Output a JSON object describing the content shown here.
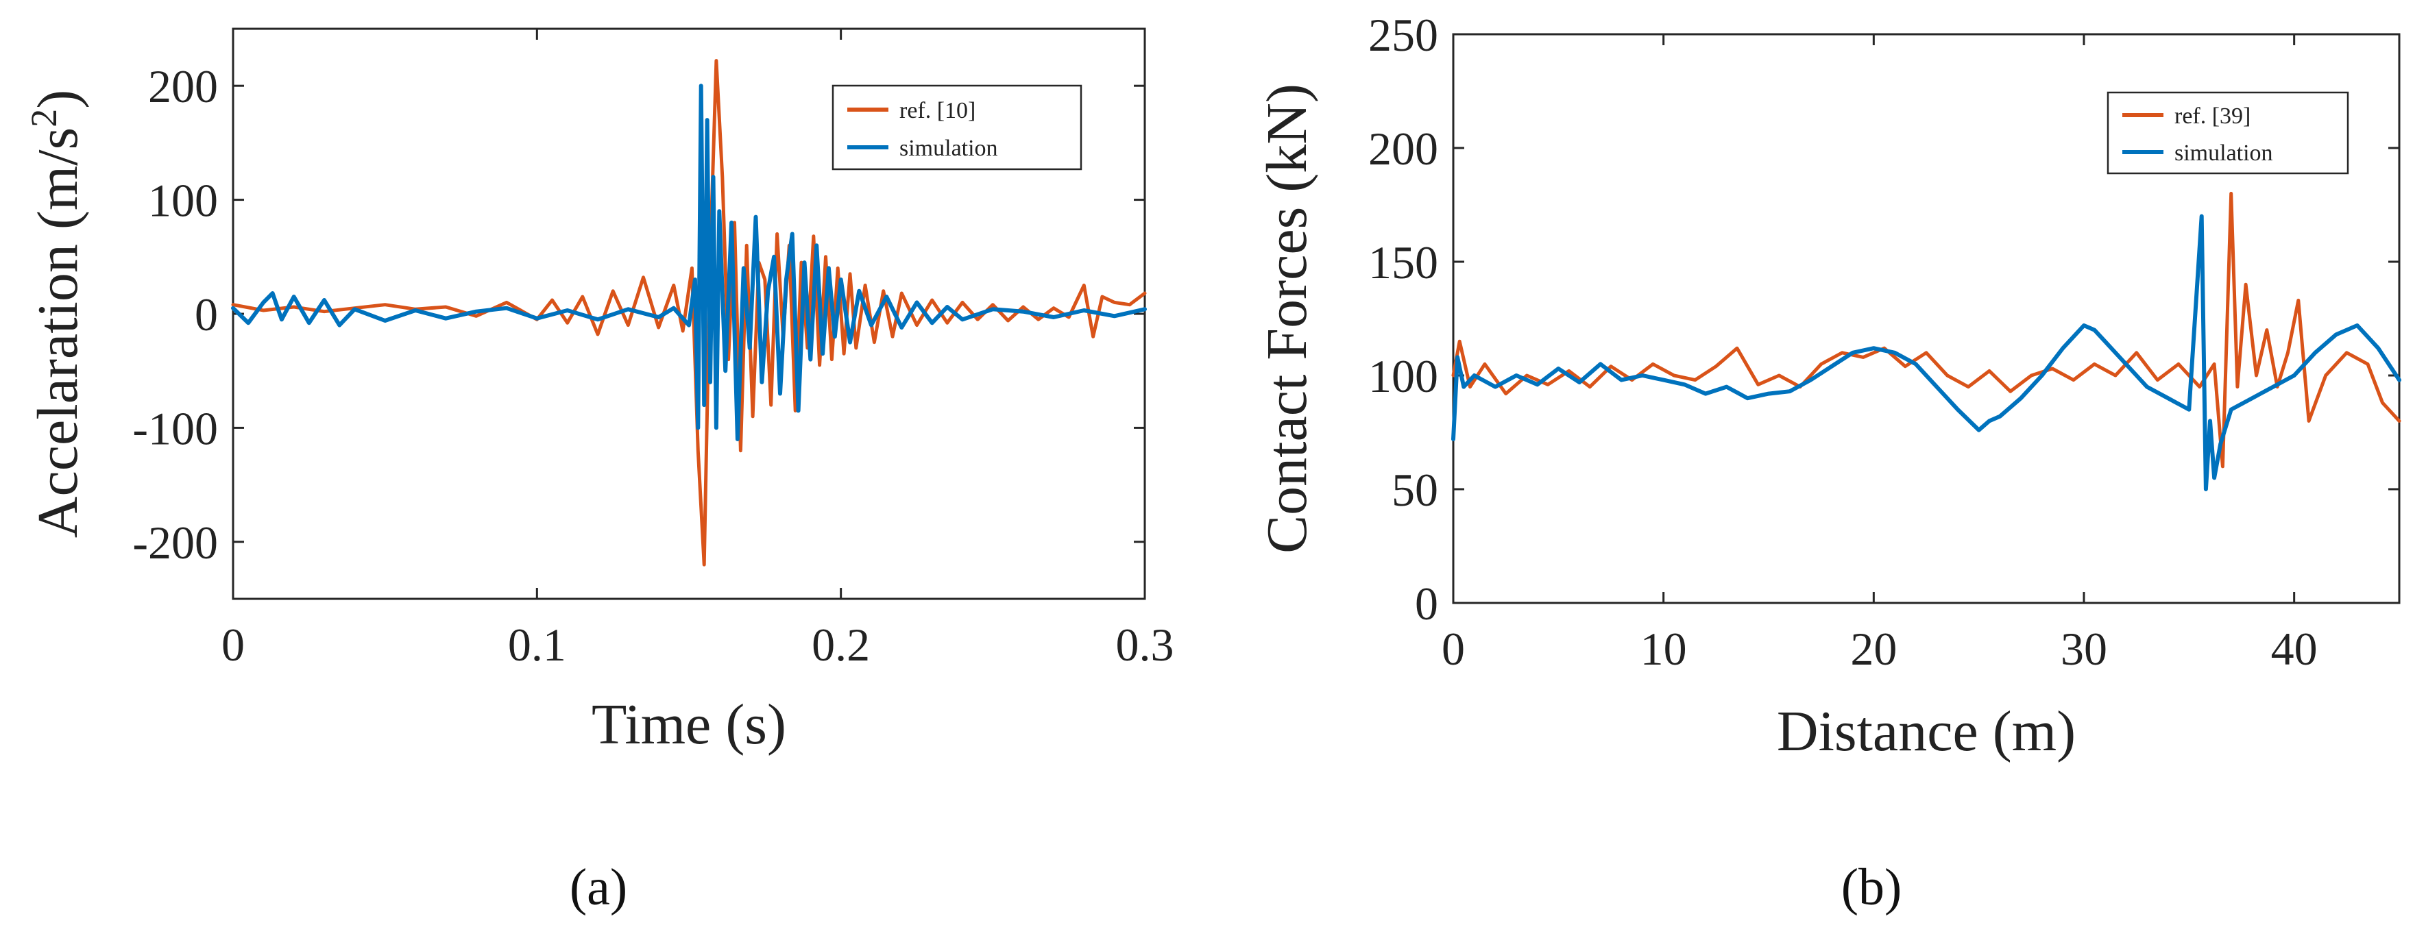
{
  "chart_data": [
    {
      "type": "line",
      "panel": "(a)",
      "xlabel": "Time (s)",
      "ylabel": "Accelaration (m/s",
      "ylabel_sup": "2",
      "ylabel_end": ")",
      "xlim": [
        0,
        0.3
      ],
      "ylim": [
        -250,
        250
      ],
      "xticks": [
        0,
        0.1,
        0.2,
        0.3
      ],
      "xtick_labels": [
        "0",
        "0.1",
        "0.2",
        "0.3"
      ],
      "yticks": [
        -200,
        -100,
        0,
        100,
        200
      ],
      "ytick_labels": [
        "-200",
        "-100",
        "0",
        "100",
        "200"
      ],
      "legend": {
        "position": "top-right",
        "entries": [
          "ref. [10]",
          "simulation"
        ]
      },
      "series": [
        {
          "name": "ref. [10]",
          "color": "#d95319",
          "x": [
            0,
            0.01,
            0.02,
            0.03,
            0.04,
            0.05,
            0.06,
            0.07,
            0.08,
            0.09,
            0.1,
            0.105,
            0.11,
            0.115,
            0.12,
            0.125,
            0.13,
            0.135,
            0.14,
            0.145,
            0.148,
            0.151,
            0.153,
            0.155,
            0.157,
            0.159,
            0.161,
            0.163,
            0.165,
            0.167,
            0.169,
            0.171,
            0.173,
            0.175,
            0.177,
            0.179,
            0.181,
            0.183,
            0.185,
            0.187,
            0.189,
            0.191,
            0.193,
            0.195,
            0.197,
            0.199,
            0.201,
            0.203,
            0.205,
            0.208,
            0.211,
            0.214,
            0.217,
            0.22,
            0.225,
            0.23,
            0.235,
            0.24,
            0.245,
            0.25,
            0.255,
            0.26,
            0.265,
            0.27,
            0.275,
            0.28,
            0.283,
            0.286,
            0.29,
            0.295,
            0.3
          ],
          "values": [
            8,
            3,
            6,
            2,
            5,
            8,
            4,
            6,
            -2,
            10,
            -5,
            12,
            -8,
            15,
            -18,
            20,
            -10,
            32,
            -12,
            25,
            -15,
            40,
            -120,
            -220,
            50,
            222,
            120,
            -40,
            80,
            -120,
            60,
            -90,
            45,
            30,
            -80,
            70,
            -20,
            60,
            -85,
            45,
            -30,
            68,
            -45,
            50,
            -40,
            40,
            -35,
            35,
            -30,
            25,
            -25,
            20,
            -20,
            18,
            -10,
            12,
            -8,
            10,
            -5,
            8,
            -6,
            6,
            -5,
            5,
            -3,
            25,
            -20,
            15,
            10,
            8,
            18
          ]
        },
        {
          "name": "simulation",
          "color": "#0072bd",
          "x": [
            0,
            0.005,
            0.01,
            0.013,
            0.016,
            0.02,
            0.025,
            0.03,
            0.035,
            0.04,
            0.05,
            0.06,
            0.07,
            0.08,
            0.09,
            0.1,
            0.11,
            0.12,
            0.13,
            0.14,
            0.145,
            0.15,
            0.152,
            0.153,
            0.154,
            0.155,
            0.156,
            0.157,
            0.158,
            0.159,
            0.16,
            0.162,
            0.164,
            0.166,
            0.168,
            0.17,
            0.172,
            0.174,
            0.176,
            0.178,
            0.18,
            0.182,
            0.184,
            0.186,
            0.188,
            0.19,
            0.192,
            0.194,
            0.196,
            0.198,
            0.2,
            0.203,
            0.206,
            0.21,
            0.215,
            0.22,
            0.225,
            0.23,
            0.235,
            0.24,
            0.25,
            0.26,
            0.27,
            0.28,
            0.29,
            0.3
          ],
          "values": [
            5,
            -8,
            10,
            18,
            -5,
            15,
            -8,
            12,
            -10,
            4,
            -6,
            3,
            -4,
            2,
            5,
            -4,
            3,
            -5,
            4,
            -3,
            5,
            -10,
            30,
            -100,
            200,
            -80,
            170,
            -60,
            120,
            -100,
            90,
            -50,
            80,
            -110,
            40,
            -30,
            85,
            -60,
            20,
            50,
            -70,
            30,
            70,
            -85,
            45,
            -40,
            60,
            -35,
            40,
            -20,
            30,
            -25,
            20,
            -10,
            15,
            -12,
            10,
            -8,
            6,
            -5,
            4,
            2,
            -3,
            3,
            -2,
            4
          ]
        }
      ]
    },
    {
      "type": "line",
      "panel": "(b)",
      "xlabel": "Distance (m)",
      "ylabel": "Contact Forces (kN)",
      "xlim": [
        0,
        45
      ],
      "ylim": [
        0,
        250
      ],
      "xticks": [
        0,
        10,
        20,
        30,
        40
      ],
      "xtick_labels": [
        "0",
        "10",
        "20",
        "30",
        "40"
      ],
      "yticks": [
        0,
        50,
        100,
        150,
        200,
        250
      ],
      "ytick_labels": [
        "0",
        "50",
        "100",
        "150",
        "200",
        "250"
      ],
      "legend": {
        "position": "top-right",
        "entries": [
          "ref. [39]",
          "simulation"
        ]
      },
      "series": [
        {
          "name": "ref. [39]",
          "color": "#d95319",
          "x": [
            0,
            0.3,
            0.8,
            1.5,
            2.5,
            3.5,
            4.5,
            5.5,
            6.5,
            7.5,
            8.5,
            9.5,
            10.5,
            11.5,
            12.5,
            13.5,
            14.5,
            15.5,
            16.5,
            17.5,
            18.5,
            19.5,
            20.5,
            21.5,
            22.5,
            23.5,
            24.5,
            25.5,
            26.5,
            27.5,
            28.5,
            29.5,
            30.5,
            31.5,
            32.5,
            33.5,
            34.5,
            35.5,
            36.2,
            36.6,
            37.0,
            37.3,
            37.7,
            38.2,
            38.7,
            39.2,
            39.7,
            40.2,
            40.7,
            41.5,
            42.5,
            43.5,
            44.2,
            45
          ],
          "values": [
            100,
            115,
            95,
            105,
            92,
            100,
            96,
            102,
            95,
            104,
            98,
            105,
            100,
            98,
            104,
            112,
            96,
            100,
            95,
            105,
            110,
            108,
            112,
            104,
            110,
            100,
            95,
            102,
            93,
            100,
            103,
            98,
            105,
            100,
            110,
            98,
            105,
            95,
            105,
            60,
            180,
            95,
            140,
            100,
            120,
            95,
            110,
            133,
            80,
            100,
            110,
            105,
            88,
            80
          ]
        },
        {
          "name": "simulation",
          "color": "#0072bd",
          "x": [
            0,
            0.2,
            0.5,
            1,
            2,
            3,
            4,
            5,
            6,
            7,
            8,
            9,
            10,
            11,
            12,
            13,
            14,
            15,
            16,
            17,
            18,
            19,
            20,
            21,
            22,
            23,
            24,
            25,
            25.5,
            26,
            27,
            28,
            29,
            30,
            30.5,
            31,
            32,
            33,
            34,
            35,
            35.6,
            35.8,
            36.0,
            36.2,
            36.5,
            37,
            38,
            39,
            40,
            41,
            42,
            43,
            44,
            45
          ],
          "values": [
            72,
            108,
            95,
            100,
            95,
            100,
            96,
            103,
            97,
            105,
            98,
            100,
            98,
            96,
            92,
            95,
            90,
            92,
            93,
            98,
            104,
            110,
            112,
            110,
            105,
            95,
            85,
            76,
            80,
            82,
            90,
            100,
            112,
            122,
            120,
            115,
            105,
            95,
            90,
            85,
            170,
            50,
            80,
            55,
            70,
            85,
            90,
            95,
            100,
            110,
            118,
            122,
            112,
            98
          ]
        }
      ]
    }
  ],
  "captions": {
    "left": "(a)",
    "right": "(b)"
  }
}
